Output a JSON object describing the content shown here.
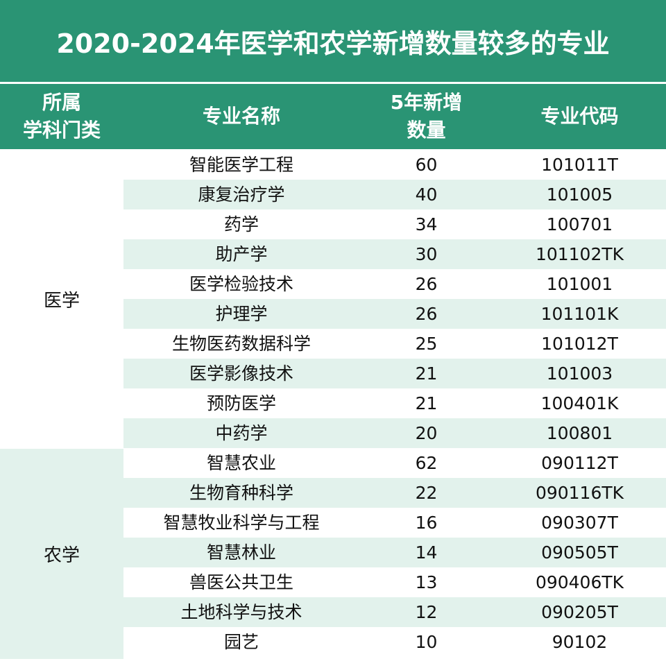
{
  "title": "2020-2024年医学和农学新增数量较多的专业",
  "headers": {
    "category": "所属\n学科门类",
    "name": "专业名称",
    "count": "5年新增\n数量",
    "code": "专业代码"
  },
  "categories": {
    "medicine": "医学",
    "agriculture": "农学"
  },
  "colors": {
    "header_green": "#2a9474",
    "stripe": "#e2f2ec"
  },
  "rows": [
    {
      "name": "智能医学工程",
      "count": "60",
      "code": "101011T"
    },
    {
      "name": "康复治疗学",
      "count": "40",
      "code": "101005"
    },
    {
      "name": "药学",
      "count": "34",
      "code": "100701"
    },
    {
      "name": "助产学",
      "count": "30",
      "code": "101102TK"
    },
    {
      "name": "医学检验技术",
      "count": "26",
      "code": "101001"
    },
    {
      "name": "护理学",
      "count": "26",
      "code": "101101K"
    },
    {
      "name": "生物医药数据科学",
      "count": "25",
      "code": "101012T"
    },
    {
      "name": "医学影像技术",
      "count": "21",
      "code": "101003"
    },
    {
      "name": "预防医学",
      "count": "21",
      "code": "100401K"
    },
    {
      "name": "中药学",
      "count": "20",
      "code": "100801"
    },
    {
      "name": "智慧农业",
      "count": "62",
      "code": "090112T"
    },
    {
      "name": "生物育种科学",
      "count": "22",
      "code": "090116TK"
    },
    {
      "name": "智慧牧业科学与工程",
      "count": "16",
      "code": "090307T"
    },
    {
      "name": "智慧林业",
      "count": "14",
      "code": "090505T"
    },
    {
      "name": "兽医公共卫生",
      "count": "13",
      "code": "090406TK"
    },
    {
      "name": "土地科学与技术",
      "count": "12",
      "code": "090205T"
    },
    {
      "name": "园艺",
      "count": "10",
      "code": "90102"
    }
  ]
}
